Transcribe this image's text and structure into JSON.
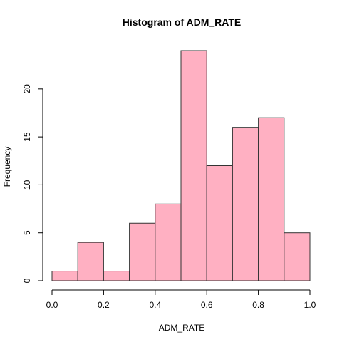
{
  "chart_data": {
    "type": "bar",
    "title": "Histogram of ADM_RATE",
    "xlabel": "ADM_RATE",
    "ylabel": "Frequency",
    "bins": [
      {
        "start": 0.0,
        "end": 0.1,
        "count": 1
      },
      {
        "start": 0.1,
        "end": 0.2,
        "count": 4
      },
      {
        "start": 0.2,
        "end": 0.3,
        "count": 1
      },
      {
        "start": 0.3,
        "end": 0.4,
        "count": 6
      },
      {
        "start": 0.4,
        "end": 0.5,
        "count": 8
      },
      {
        "start": 0.5,
        "end": 0.6,
        "count": 24
      },
      {
        "start": 0.6,
        "end": 0.7,
        "count": 12
      },
      {
        "start": 0.7,
        "end": 0.8,
        "count": 16
      },
      {
        "start": 0.8,
        "end": 0.9,
        "count": 17
      },
      {
        "start": 0.9,
        "end": 1.0,
        "count": 5
      }
    ],
    "xlim": [
      0.0,
      1.0
    ],
    "ylim": [
      0,
      24
    ],
    "x_ticks": [
      0.0,
      0.2,
      0.4,
      0.6,
      0.8,
      1.0
    ],
    "x_tick_labels": [
      "0.0",
      "0.2",
      "0.4",
      "0.6",
      "0.8",
      "1.0"
    ],
    "y_ticks": [
      0,
      5,
      10,
      15,
      20
    ],
    "y_tick_labels": [
      "0",
      "5",
      "10",
      "15",
      "20"
    ],
    "grid": false,
    "legend": "none",
    "bar_color": "#FFB0C2",
    "bar_edge_color": "#333333"
  }
}
